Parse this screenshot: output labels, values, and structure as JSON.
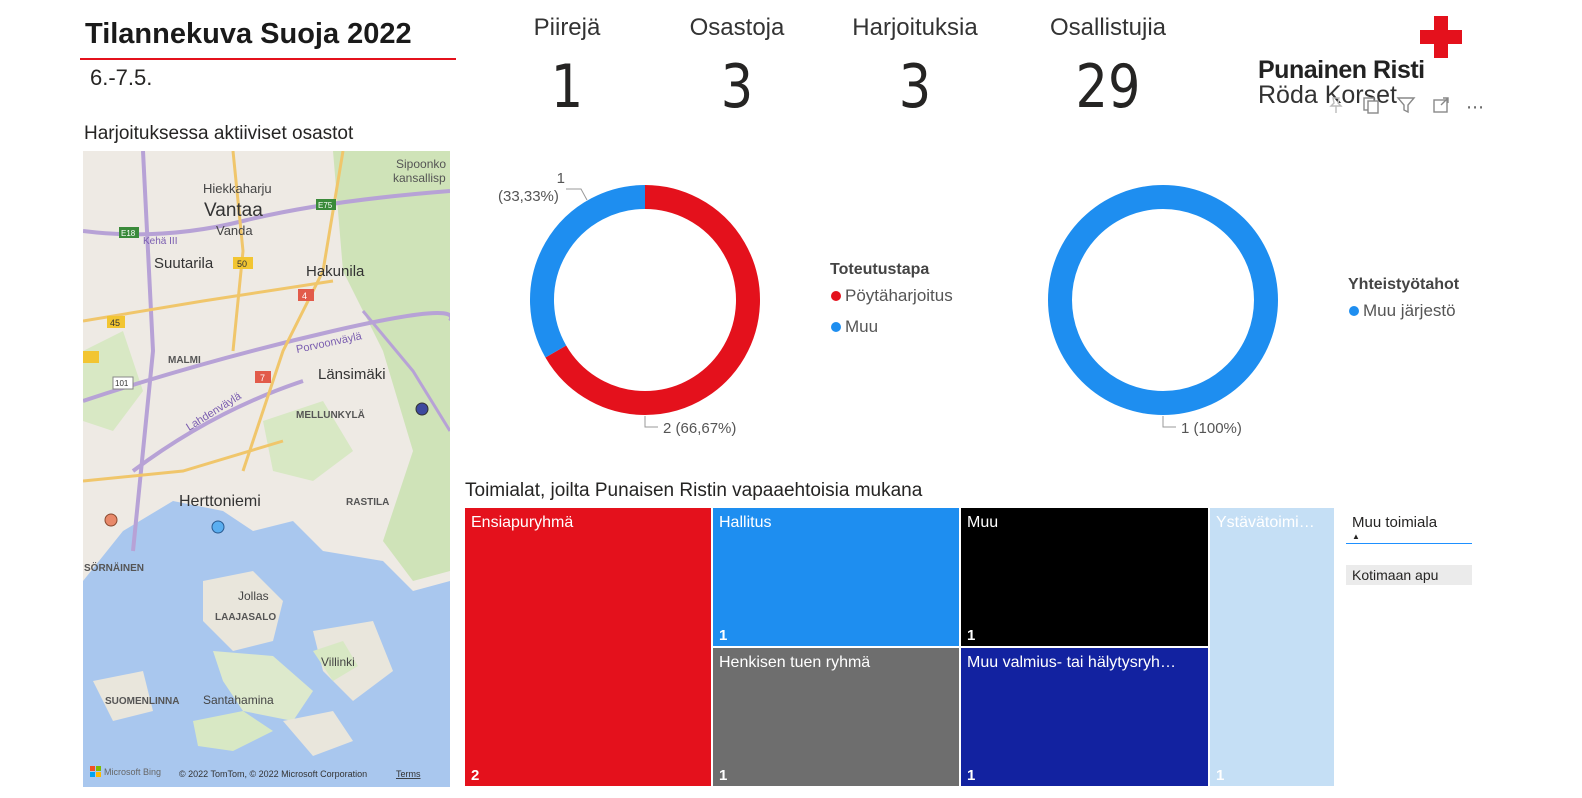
{
  "header": {
    "title": "Tilannekuva Suoja 2022",
    "date_range": "6.-7.5."
  },
  "kpis": [
    {
      "label": "Piirejä",
      "value": "1"
    },
    {
      "label": "Osastoja",
      "value": "3"
    },
    {
      "label": "Harjoituksia",
      "value": "3"
    },
    {
      "label": "Osallistujia",
      "value": "29"
    }
  ],
  "logo": {
    "line1": "Punainen Risti",
    "line2": "Röda Korset",
    "icon": "red-cross-icon",
    "color": "#e4111c"
  },
  "visual_toolbar": {
    "icons": [
      "pin-icon",
      "copy-icon",
      "filter-icon",
      "focus-mode-icon",
      "more-options-icon"
    ]
  },
  "map": {
    "title": "Harjoituksessa aktiiviset osastot",
    "places": [
      "Vantaa",
      "Vanda",
      "Hiekkaharju",
      "Suutarila",
      "Hakunila",
      "Länsimäki",
      "MALMI",
      "MELLUNKYLÄ",
      "Herttoniemi",
      "RASTILA",
      "SÖRNÄINEN",
      "Jollas",
      "LAAJASALO",
      "Villinki",
      "SUOMENLINNA",
      "Santahamina",
      "Sipoonko",
      "kansallisp"
    ],
    "roads": [
      "Kehä III",
      "E18",
      "E75",
      "50",
      "45",
      "4",
      "7",
      "101",
      "Porvoonväylä",
      "Lahdenväylä"
    ],
    "markers": [
      {
        "color": "#3d4a9e"
      },
      {
        "color": "#e8896a"
      },
      {
        "color": "#5aaef0"
      }
    ],
    "attribution_brand": "Microsoft Bing",
    "attribution": "© 2022 TomTom, © 2022 Microsoft Corporation",
    "terms_link": "Terms"
  },
  "donut_toteutustapa": {
    "legend_title": "Toteutustapa",
    "label_small_value": "1",
    "label_small_pct": "(33,33%)",
    "label_large": "2 (66,67%)"
  },
  "donut_yhteistyo": {
    "legend_title": "Yhteistyötahot",
    "label": "1 (100%)"
  },
  "chart_data": [
    {
      "type": "pie",
      "donut": true,
      "legend_title": "Toteutustapa",
      "categories": [
        "Pöytäharjoitus",
        "Muu"
      ],
      "values": [
        2,
        1
      ],
      "percentages": [
        "66,67%",
        "33,33%"
      ],
      "colors": [
        "#e4111c",
        "#1e8ef0"
      ],
      "legend_position": "right"
    },
    {
      "type": "pie",
      "donut": true,
      "legend_title": "Yhteistyötahot",
      "categories": [
        "Muu järjestö"
      ],
      "values": [
        1
      ],
      "percentages": [
        "100%"
      ],
      "colors": [
        "#1e8ef0"
      ],
      "legend_position": "right"
    },
    {
      "type": "treemap",
      "title": "Toimialat, joilta Punaisen Ristin vapaaehtoisia mukana",
      "categories": [
        "Ensiapuryhmä",
        "Hallitus",
        "Muu",
        "Henkisen tuen ryhmä",
        "Muu valmius- tai hälytysryh…",
        "Ystävätoimi…"
      ],
      "values": [
        2,
        1,
        1,
        1,
        1,
        1
      ],
      "colors": [
        "#e4111c",
        "#1e8ef0",
        "#000000",
        "#6e6e6e",
        "#1222a0",
        "#c5dff5"
      ]
    }
  ],
  "slicer": {
    "title": "Muu toimiala",
    "items": [
      "Kotimaan apu"
    ]
  }
}
